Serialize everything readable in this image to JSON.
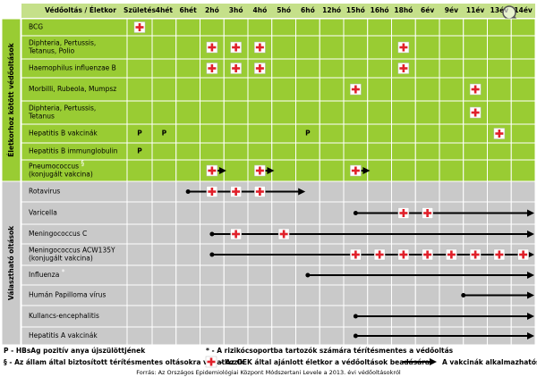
{
  "header": "Védőoltás / Életkor",
  "ages": [
    "Születés",
    "4hét",
    "6hét",
    "2hó",
    "3hó",
    "4hó",
    "5hó",
    "6hó",
    "12hó",
    "15hó",
    "16hó",
    "18hó",
    "6év",
    "9év",
    "11év",
    "13év",
    "14év"
  ],
  "groups": [
    {
      "label": "Életkorhoz kötött védőoltások",
      "rows": [
        {
          "name": [
            "BCG"
          ]
        },
        {
          "name": [
            "Diphteria, Pertussis,",
            "Tetanus, Polio"
          ]
        },
        {
          "name": [
            "Haemophilus influenzae B"
          ]
        },
        {
          "name": [
            "Morbilli, Rubeola, Mumpsz"
          ]
        },
        {
          "name": [
            "Diphteria, Pertussis,",
            "Tetanus"
          ]
        },
        {
          "name": [
            "Hepatitis B vakcinák"
          ],
          "marks": [
            "P",
            "P",
            "P"
          ]
        },
        {
          "name": [
            "Hepatitis B immunglobulin"
          ],
          "marks": [
            "P"
          ]
        },
        {
          "name": [
            "Pneumococcus",
            "(konjugált vakcina)"
          ],
          "note": "§"
        }
      ]
    },
    {
      "label": "Választható oltások",
      "rows": [
        {
          "name": [
            "Rotavirus"
          ]
        },
        {
          "name": [
            "Varicella"
          ]
        },
        {
          "name": [
            "Meningococcus C"
          ]
        },
        {
          "name": [
            "Meningococcus ACW135Y",
            "(konjugált vakcina)"
          ]
        },
        {
          "name": [
            "Influenza"
          ],
          "note": "*"
        },
        {
          "name": [
            "Humán Papilloma vírus"
          ]
        },
        {
          "name": [
            "Kullancs-encephalitis"
          ]
        },
        {
          "name": [
            "Hepatitis A vakcinák"
          ]
        }
      ]
    }
  ],
  "legend": {
    "p": "P - HBsAg pozitív anya újszülöttjének",
    "state": "§ - Az állam által biztosított térítésmentes oltásokra vonatkozik",
    "risk": "* - A rizikócsoportba tartozók számára térítésmentes a védőoltás",
    "cross": "- Az OEK által ajánlott életkor a védőoltások beadására",
    "arrow": "A vakcinák alkalmazhatósági ideje"
  },
  "source": "Forrás: Az Országos Epidemiológiai Központ Módszertani Levele a 2013. évi védőoltásokról"
}
